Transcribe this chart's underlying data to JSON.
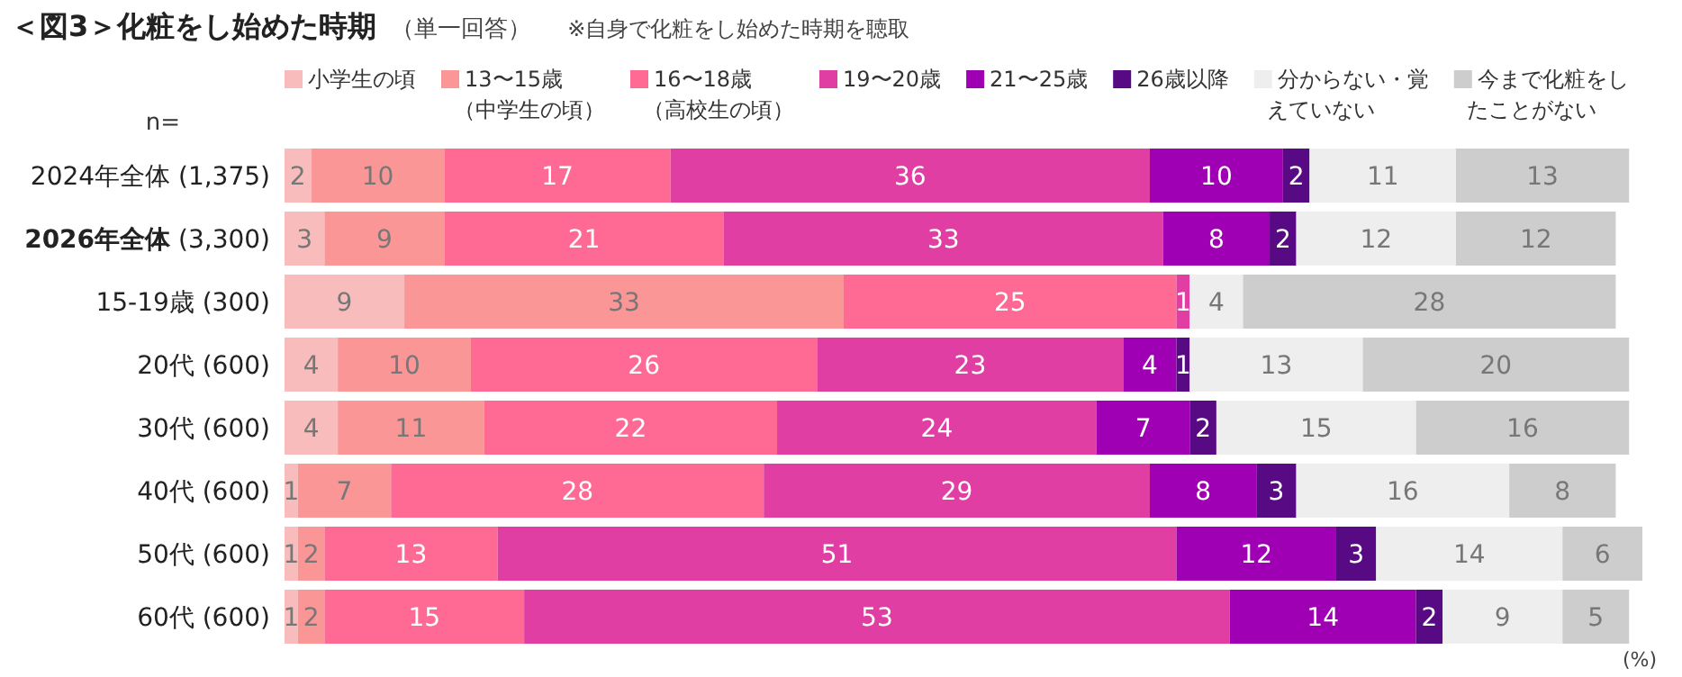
{
  "chart_data": {
    "type": "bar",
    "orientation": "horizontal",
    "stacked": true,
    "data_labels": true,
    "legend": "top",
    "title": "＜図3＞化粧をし始めた時期",
    "subtitle": "（単一回答）",
    "annotations": [
      "※自身で化粧をし始めた時期を聴取",
      "n=",
      "(%)"
    ],
    "categories": [
      "2024年全体 (1,375)",
      "**2026年全体** (3,300)",
      "15-19歳 (300)",
      "20代 (600)",
      "30代 (600)",
      "40代 (600)",
      "50代 (600)",
      "60代 (600)"
    ],
    "series": [
      {
        "name": "小学生の頃",
        "color": "#f9bcbc",
        "values": [
          2,
          3,
          9,
          4,
          4,
          1,
          1,
          1
        ]
      },
      {
        "name": "13〜15歳（中学生の頃）",
        "color": "#fb9696",
        "values": [
          10,
          9,
          33,
          10,
          11,
          7,
          2,
          2
        ]
      },
      {
        "name": "16〜18歳（高校生の頃）",
        "color": "#fe6a94",
        "values": [
          17,
          21,
          25,
          26,
          22,
          28,
          13,
          15
        ]
      },
      {
        "name": "19〜20歳",
        "color": "#e03ea2",
        "values": [
          36,
          33,
          1,
          23,
          24,
          29,
          51,
          53
        ]
      },
      {
        "name": "21〜25歳",
        "color": "#a000b4",
        "values": [
          10,
          8,
          null,
          4,
          7,
          8,
          12,
          14
        ]
      },
      {
        "name": "26歳以降",
        "color": "#580a84",
        "values": [
          2,
          2,
          null,
          1,
          2,
          3,
          3,
          2
        ]
      },
      {
        "name": "分からない・覚えていない",
        "color": "#eeeeee",
        "values": [
          11,
          12,
          4,
          13,
          15,
          16,
          14,
          9
        ]
      },
      {
        "name": "今まで化粧をしたことがない",
        "color": "#cdcdcd",
        "values": [
          13,
          12,
          28,
          20,
          16,
          8,
          6,
          5
        ]
      }
    ]
  }
}
